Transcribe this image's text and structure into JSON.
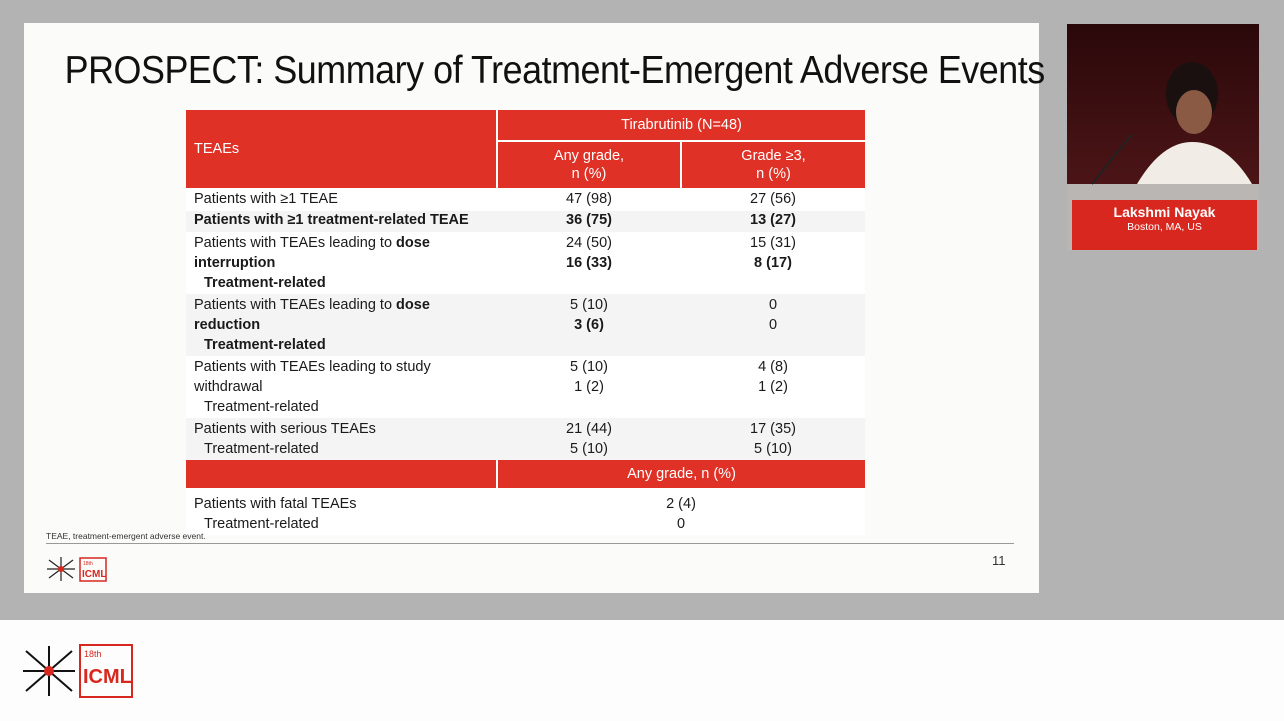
{
  "slide": {
    "title": "PROSPECT: Summary of Treatment-Emergent Adverse Events",
    "footnote": "TEAE, treatment-emergent adverse event.",
    "page_number": "11"
  },
  "table": {
    "col_label": "TEAEs",
    "drug_header": "Tirabrutinib (N=48)",
    "any_grade_header_1": "Any grade,",
    "any_grade_header_2": "n (%)",
    "grade3_header_1": "Grade ≥3,",
    "grade3_header_2": "n (%)",
    "r1": {
      "label": "Patients with ≥1 TEAE",
      "any": "47 (98)",
      "g3": "27 (56)"
    },
    "r2": {
      "label": "Patients with ≥1 treatment-related TEAE",
      "any": "36 (75)",
      "g3": "13 (27)"
    },
    "r3": {
      "label_pre": "Patients with TEAEs leading to ",
      "label_bold": "dose interruption",
      "any": "24 (50)",
      "g3": "15 (31)",
      "sub_label": "Treatment-related",
      "sub_any": "16 (33)",
      "sub_g3": "8 (17)"
    },
    "r4": {
      "label_pre": "Patients with TEAEs leading to ",
      "label_bold": "dose reduction",
      "any": "5 (10)",
      "g3": "0",
      "sub_label": "Treatment-related",
      "sub_any": "3 (6)",
      "sub_g3": "0"
    },
    "r5": {
      "label": "Patients with TEAEs leading to study withdrawal",
      "any": "5 (10)",
      "g3": "4 (8)",
      "sub_label": "Treatment-related",
      "sub_any": "1 (2)",
      "sub_g3": "1 (2)"
    },
    "r6": {
      "label": "Patients with serious TEAEs",
      "any": "21 (44)",
      "g3": "17 (35)",
      "sub_label": "Treatment-related",
      "sub_any": "5 (10)",
      "sub_g3": "5 (10)"
    },
    "any_grade_only_header": "Any grade, n (%)",
    "r7": {
      "label": "Patients with fatal TEAEs",
      "val": "2 (4)",
      "sub_label": "Treatment-related",
      "sub_val": "0"
    }
  },
  "speaker": {
    "name": "Lakshmi Nayak",
    "location": "Boston, MA, US"
  },
  "logo": {
    "edition": "18th",
    "name": "ICML"
  },
  "colors": {
    "accent": "#e03127",
    "nameplate": "#d8271f"
  }
}
